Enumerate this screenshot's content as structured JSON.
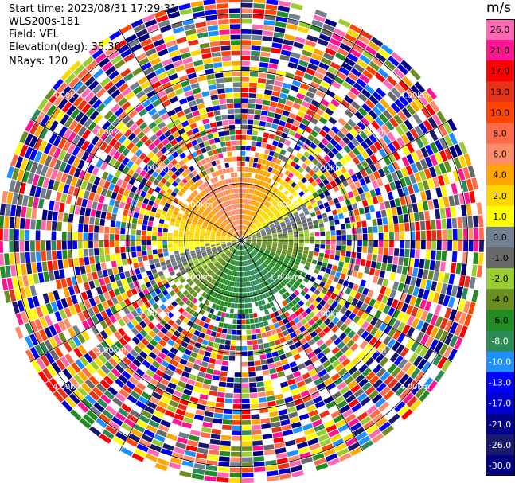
{
  "header": {
    "start_time": "Start time: 2023/08/31 17:29:31",
    "instrument": "WLS200s-181",
    "field": "Field: VEL",
    "elevation": "Elevation(deg): 35.30",
    "nrays": "NRays: 120"
  },
  "chart_data": {
    "type": "heatmap",
    "projection": "polar-ppi",
    "title": "",
    "field": "VEL",
    "units": "m/s",
    "nrays": 120,
    "elevation_deg": 35.3,
    "range_rings_km": [
      1.0,
      2.0,
      3.0,
      4.0
    ],
    "range_ring_labels": [
      "1.00km",
      "2.00km",
      "3.00km",
      "4.00km"
    ],
    "max_range_km": 4.3,
    "valid_data_range_km": 1.5,
    "colorbar": {
      "label": "m/s",
      "ticks": [
        "26.0",
        "21.0",
        "17.0",
        "13.0",
        "10.0",
        "8.0",
        "6.0",
        "4.0",
        "2.0",
        "1.0",
        "0.0",
        "-1.0",
        "-2.0",
        "-4.0",
        "-6.0",
        "-8.0",
        "-10.0",
        "-13.0",
        "-17.0",
        "-21.0",
        "-26.0",
        "-30.0"
      ],
      "colors": [
        "#ff69b4",
        "#ff1493",
        "#ff0000",
        "#e8311a",
        "#ff4500",
        "#ff6b4a",
        "#ff8c69",
        "#ffa500",
        "#ffd700",
        "#ffff00",
        "#708090",
        "#696969",
        "#9acd32",
        "#6b8e23",
        "#228b22",
        "#2e8b57",
        "#1e90ff",
        "#0000ff",
        "#0000cd",
        "#00008b",
        "#191970",
        "#000080"
      ]
    }
  }
}
